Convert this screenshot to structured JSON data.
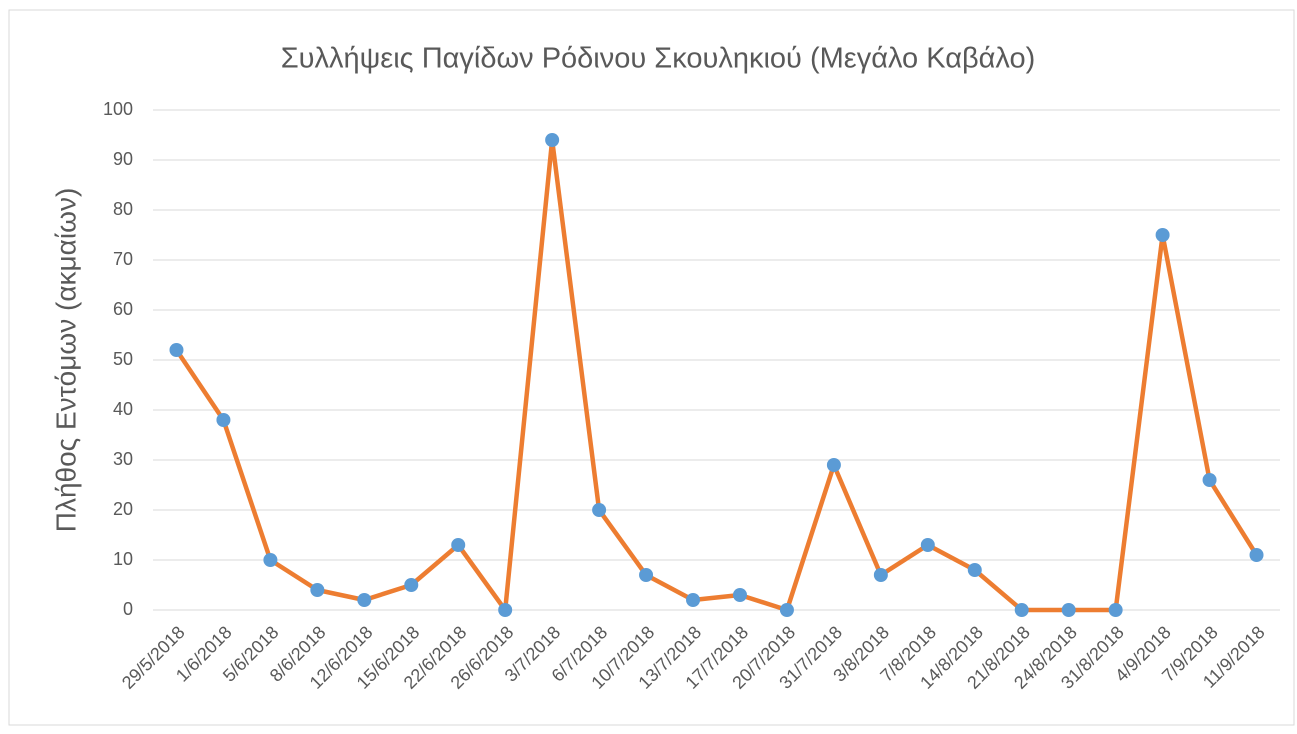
{
  "chart_data": {
    "type": "line",
    "title": "Συλλήψεις Παγίδων Ρόδινου Σκουληκιού (Μεγάλο Καβάλο)",
    "y_label": "Πλήθος Εντόμων (ακμαίων)",
    "categories": [
      "29/5/2018",
      "1/6/2018",
      "5/6/2018",
      "8/6/2018",
      "12/6/2018",
      "15/6/2018",
      "22/6/2018",
      "26/6/2018",
      "3/7/2018",
      "6/7/2018",
      "10/7/2018",
      "13/7/2018",
      "17/7/2018",
      "20/7/2018",
      "31/7/2018",
      "3/8/2018",
      "7/8/2018",
      "14/8/2018",
      "21/8/2018",
      "24/8/2018",
      "31/8/2018",
      "4/9/2018",
      "7/9/2018",
      "11/9/2018"
    ],
    "values": [
      52,
      38,
      10,
      4,
      2,
      5,
      13,
      0,
      94,
      20,
      7,
      2,
      3,
      0,
      29,
      7,
      13,
      8,
      0,
      0,
      0,
      75,
      26,
      11
    ],
    "color": "#ED7D31",
    "marker_color": "#5B9BD5",
    "ylim": [
      0,
      100
    ],
    "yticks": [
      0,
      10,
      20,
      30,
      40,
      50,
      60,
      70,
      80,
      90,
      100
    ],
    "grid": true
  }
}
